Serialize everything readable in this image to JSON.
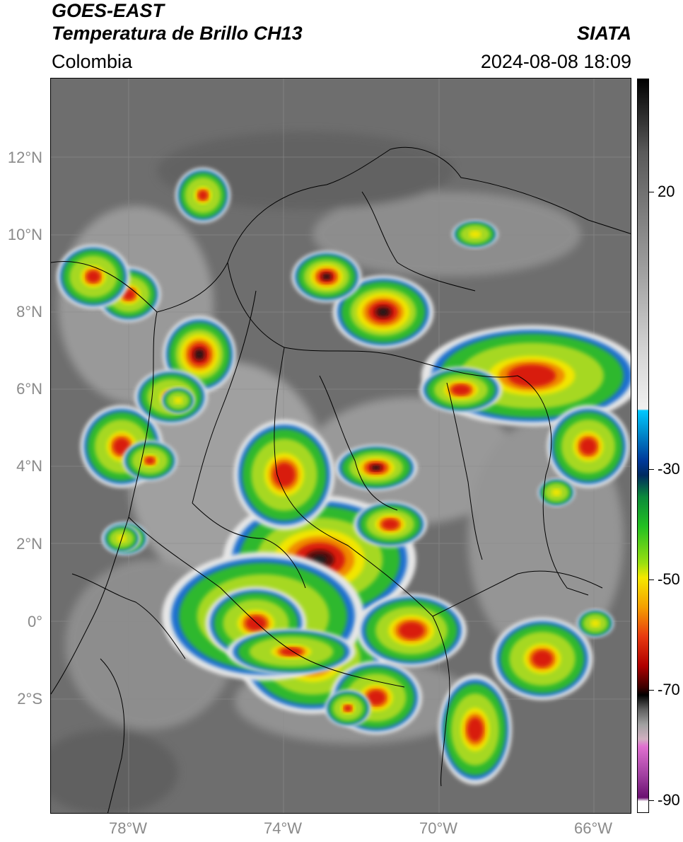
{
  "header": {
    "satellite": "GOES-EAST",
    "product": "Temperatura de Brillo CH13",
    "region": "Colombia",
    "agency": "SIATA",
    "datetime": "2024-08-08 18:09"
  },
  "map": {
    "lat_labels": [
      "12°N",
      "10°N",
      "8°N",
      "6°N",
      "4°N",
      "2°N",
      "0°",
      "2°S"
    ],
    "lon_labels": [
      "78°W",
      "74°W",
      "70°W",
      "66°W"
    ]
  },
  "colorbar": {
    "labels": [
      "20",
      "-30",
      "-50",
      "-70",
      "-90"
    ]
  },
  "colors": {
    "background_gray": "#6e6e6e",
    "cloud_light": "#d9d9d9",
    "cold_green": "#2db82d",
    "cold_yellow": "#f2e600",
    "cold_red": "#d81d10",
    "cold_darkred": "#5a0808",
    "cold_black": "#1a1a1a"
  }
}
